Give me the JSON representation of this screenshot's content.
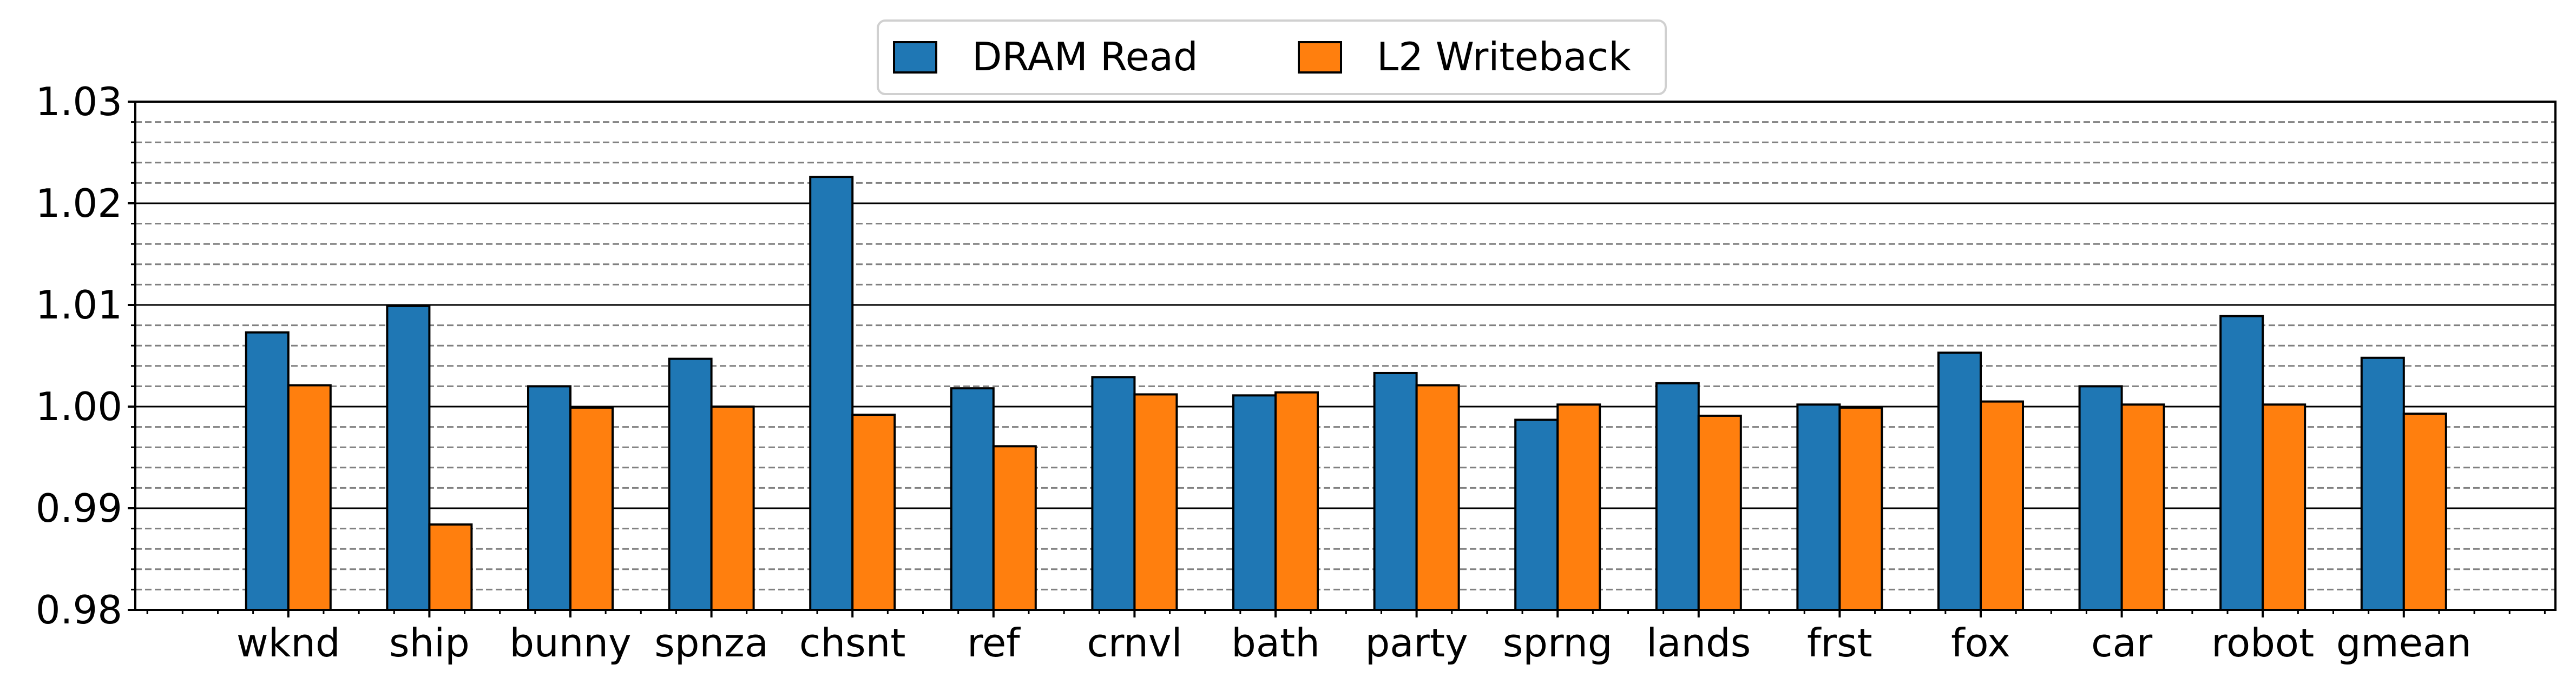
{
  "chart_data": {
    "type": "bar",
    "title": "",
    "xlabel": "",
    "ylabel": "",
    "ylim": [
      0.98,
      1.03
    ],
    "yticks": [
      "0.98",
      "0.99",
      "1.00",
      "1.01",
      "1.02",
      "1.03"
    ],
    "grid": {
      "major": "solid",
      "minor": "dashed"
    },
    "legend": {
      "placement": "top-center",
      "entries": [
        "DRAM Read",
        "L2 Writeback"
      ]
    },
    "categories": [
      "wknd",
      "ship",
      "bunny",
      "spnza",
      "chsnt",
      "ref",
      "crnvl",
      "bath",
      "party",
      "sprng",
      "lands",
      "frst",
      "fox",
      "car",
      "robot",
      "gmean"
    ],
    "series": [
      {
        "name": "DRAM Read",
        "color": "#1f77b4",
        "values": [
          1.0073,
          1.0099,
          1.002,
          1.0047,
          1.0226,
          1.0018,
          1.0029,
          1.0011,
          1.0033,
          0.9987,
          1.0023,
          1.0002,
          1.0053,
          1.002,
          1.0089,
          1.0048
        ]
      },
      {
        "name": "L2 Writeback",
        "color": "#ff7f0e",
        "values": [
          1.0021,
          0.9884,
          0.9999,
          1.0,
          0.9992,
          0.9961,
          1.0012,
          1.0014,
          1.0021,
          1.0002,
          0.9991,
          0.9999,
          1.0005,
          1.0002,
          1.0002,
          0.9993
        ]
      }
    ]
  }
}
